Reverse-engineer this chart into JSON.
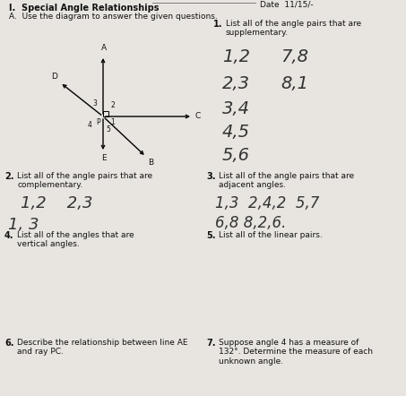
{
  "bg_color": "#e8e5e0",
  "title": "I.  Special Angle Relationships",
  "date_text": "Date  11/15/-",
  "subtitle": "A.  Use the diagram to answer the given questions.",
  "q1_bold": "1.",
  "q1_text": "List all of the angle pairs that are\nsupplementary.",
  "q1_answers": [
    [
      "1,2",
      "7,8"
    ],
    [
      "2,3",
      "8,1"
    ],
    [
      "3,4",
      ""
    ],
    [
      "4,5",
      ""
    ],
    [
      "5,6",
      ""
    ]
  ],
  "q2_bold": "2.",
  "q2_text": "List all of the angle pairs that are\ncomplementary.",
  "q2_answers": [
    "1,2   2,3",
    "1, 3"
  ],
  "q3_bold": "3.",
  "q3_text": "List all of the angle pairs that are\nadjacent angles.",
  "q3_answers": [
    "1,3  2,4,2  5,7",
    "6,8 8,2,6."
  ],
  "q4_bold": "4.",
  "q4_text": "List all of the angles that are\nvertical angles.",
  "q5_bold": "5.",
  "q5_text": "List all of the linear pairs.",
  "q6_bold": "6.",
  "q6_text": "Describe the relationship between line AE\nand ray PC.",
  "q7_bold": "7.",
  "q7_text": "Suppose angle 4 has a measure of\n132°. Determine the measure of each\nunknown angle."
}
